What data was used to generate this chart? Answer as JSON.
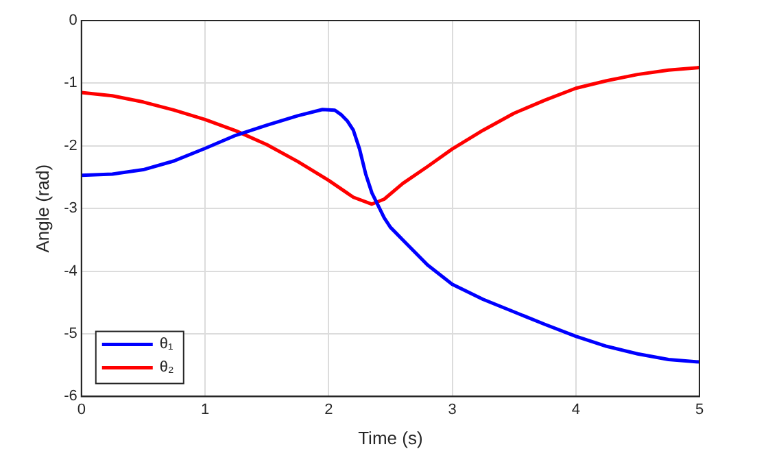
{
  "chart_data": {
    "type": "line",
    "xlabel": "Time (s)",
    "ylabel": "Angle (rad)",
    "xlim": [
      0,
      5
    ],
    "xticks": [
      0,
      1,
      2,
      3,
      4,
      5
    ],
    "ylim": [
      -6,
      0
    ],
    "yticks": [
      -6,
      -5,
      -4,
      -3,
      -2,
      -1,
      0
    ],
    "grid": true,
    "legend": "bottom left",
    "marker": "none",
    "line_style": "solid",
    "series": [
      {
        "name": "θ₁",
        "color": "#0000ff",
        "x": [
          0,
          0.25,
          0.5,
          0.75,
          1,
          1.25,
          1.5,
          1.75,
          1.95,
          2.05,
          2.1,
          2.15,
          2.2,
          2.25,
          2.3,
          2.35,
          2.4,
          2.45,
          2.5,
          2.6,
          2.7,
          2.8,
          3,
          3.25,
          3.5,
          3.75,
          4,
          4.25,
          4.5,
          4.75,
          5
        ],
        "values": [
          -2.47,
          -2.45,
          -2.38,
          -2.24,
          -2.04,
          -1.83,
          -1.67,
          -1.52,
          -1.42,
          -1.43,
          -1.5,
          -1.6,
          -1.75,
          -2.05,
          -2.45,
          -2.75,
          -2.95,
          -3.15,
          -3.3,
          -3.5,
          -3.7,
          -3.9,
          -4.21,
          -4.45,
          -4.65,
          -4.85,
          -5.04,
          -5.2,
          -5.32,
          -5.41,
          -5.45
        ]
      },
      {
        "name": "θ₂",
        "color": "#ff0000",
        "x": [
          0,
          0.25,
          0.5,
          0.75,
          1,
          1.25,
          1.5,
          1.75,
          2,
          2.2,
          2.35,
          2.45,
          2.6,
          2.8,
          3,
          3.25,
          3.5,
          3.75,
          4,
          4.25,
          4.5,
          4.75,
          5
        ],
        "values": [
          -1.15,
          -1.2,
          -1.3,
          -1.43,
          -1.58,
          -1.76,
          -1.98,
          -2.25,
          -2.55,
          -2.82,
          -2.93,
          -2.85,
          -2.6,
          -2.33,
          -2.05,
          -1.75,
          -1.48,
          -1.27,
          -1.08,
          -0.96,
          -0.86,
          -0.79,
          -0.75
        ]
      }
    ]
  }
}
